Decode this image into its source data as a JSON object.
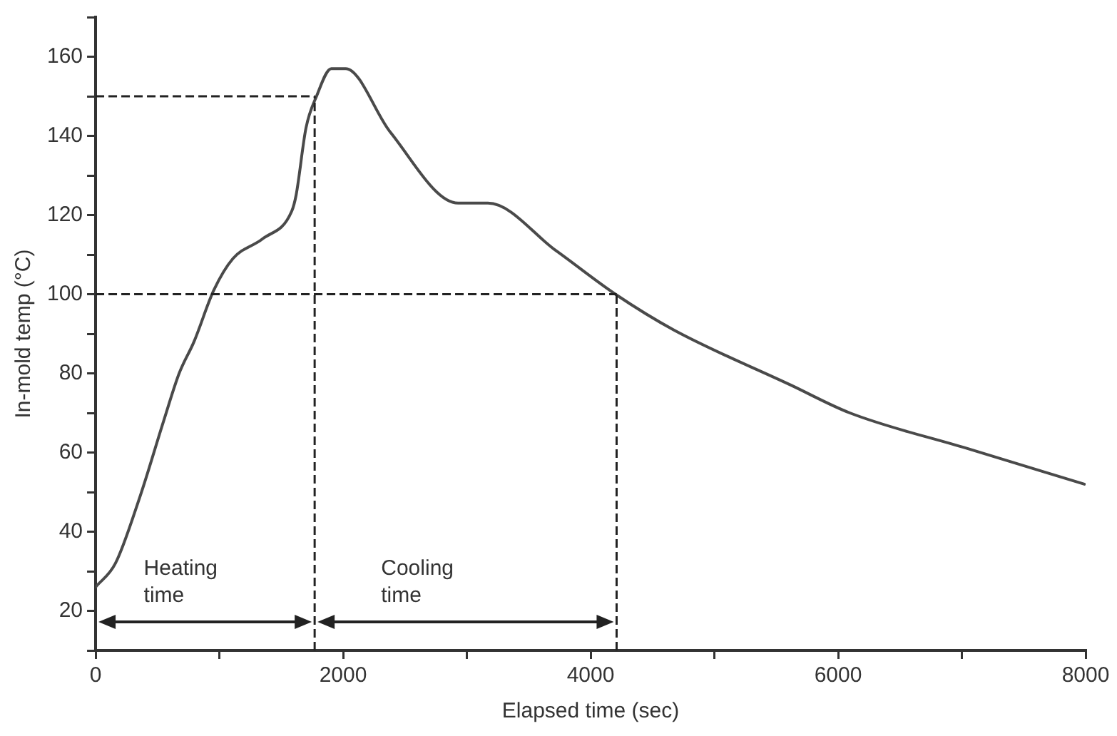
{
  "chart_data": {
    "type": "line",
    "xlabel": "Elapsed time (sec)",
    "ylabel": "In-mold temp (°C)",
    "xlim": [
      0,
      8000
    ],
    "ylim": [
      10,
      170
    ],
    "xticks": [
      0,
      {
        "value": 1000,
        "label": null
      },
      2000,
      {
        "value": 3000,
        "label": null
      },
      4000,
      {
        "value": 5000,
        "label": null
      },
      6000,
      {
        "value": 7000,
        "label": null
      },
      8000
    ],
    "yticks": [
      {
        "value": 10,
        "label": null
      },
      20,
      {
        "value": 30,
        "label": null
      },
      40,
      {
        "value": 50,
        "label": null
      },
      60,
      {
        "value": 70,
        "label": null
      },
      80,
      {
        "value": 90,
        "label": null
      },
      100,
      {
        "value": 110,
        "label": null
      },
      120,
      {
        "value": 130,
        "label": null
      },
      140,
      {
        "value": 150,
        "label": null
      },
      160,
      {
        "value": 170,
        "label": null
      }
    ],
    "grid": false,
    "legend": false,
    "marker": "none",
    "line_style": "solid",
    "series": [
      {
        "color": "#4a4a4a",
        "x": [
          0,
          160,
          360,
          550,
          675,
          795,
          955,
          1110,
          1350,
          1585,
          1620,
          1700,
          1785,
          1905,
          2020,
          2380,
          2930,
          3170,
          3720,
          4200,
          4670,
          5620,
          6095,
          7045,
          7990
        ],
        "values": [
          26,
          32,
          49,
          68,
          80,
          88,
          101,
          109,
          114,
          121,
          125,
          142,
          150,
          157,
          157,
          141,
          123,
          123,
          111,
          100,
          91,
          77,
          70,
          61,
          52
        ]
      }
    ],
    "ref_lines": [
      {
        "axis": "y",
        "value": 150,
        "line_style": "dashed"
      },
      {
        "axis": "y",
        "value": 100,
        "line_style": "dashed"
      },
      {
        "axis": "x",
        "value": 1770,
        "line_style": "dashed"
      },
      {
        "axis": "x",
        "value": 4210,
        "line_style": "dashed"
      }
    ],
    "annotations": [
      "Heating time",
      "Cooling time"
    ]
  }
}
